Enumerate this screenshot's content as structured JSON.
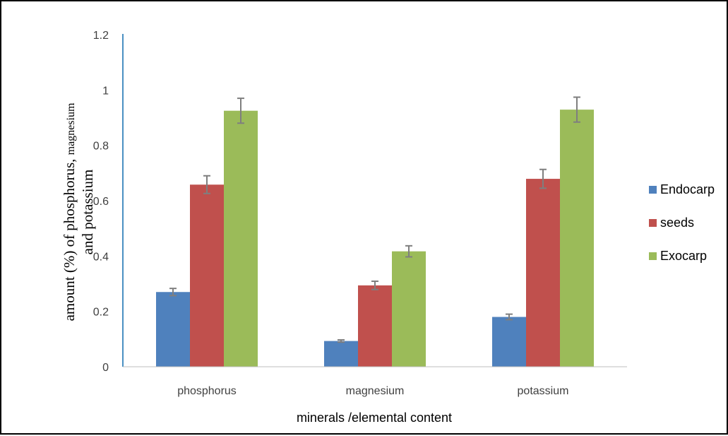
{
  "chart_data": {
    "type": "bar",
    "categories": [
      "phosphorus",
      "magnesium",
      "potassium"
    ],
    "series": [
      {
        "name": "Endocarp",
        "color": "#4f81bd",
        "values": [
          0.27,
          0.093,
          0.18
        ],
        "errors": [
          0.013,
          0.004,
          0.01
        ]
      },
      {
        "name": "seeds",
        "color": "#c0504d",
        "values": [
          0.658,
          0.294,
          0.679
        ],
        "errors": [
          0.032,
          0.015,
          0.034
        ]
      },
      {
        "name": "Exocarp",
        "color": "#9bbb59",
        "values": [
          0.925,
          0.417,
          0.929
        ],
        "errors": [
          0.045,
          0.02,
          0.045
        ]
      }
    ],
    "y_ticks": [
      "0",
      "0.2",
      "0.4",
      "0.6",
      "0.8",
      "1",
      "1.2"
    ],
    "ylim": [
      0,
      1.2
    ],
    "xlabel": "minerals /elemental content",
    "ylabel": {
      "line1_a": "amount (%) of phosphorus, ",
      "line1_b": "magnesium",
      "line2": "and potassium"
    },
    "error_bar_color": "#7f7f7f",
    "grid": false,
    "legend_position": "right"
  }
}
